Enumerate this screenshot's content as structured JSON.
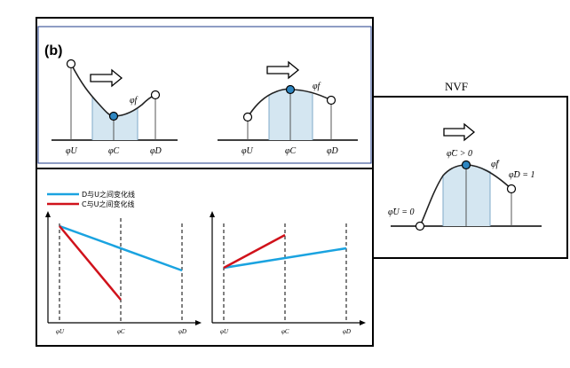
{
  "panel_label": "(b)",
  "nvf_title": "NVF",
  "axis_labels": {
    "phi_U": "φU",
    "phi_C": "φC",
    "phi_D": "φD",
    "phi_f": "φf"
  },
  "nvf_labels": {
    "phi_U_eq": "φ̃U = 0",
    "phi_C_gt": "φ̃C > 0",
    "phi_D_eq": "φ̃D = 1",
    "phi_f": "φ̃f"
  },
  "legend": [
    {
      "label": "D与U之间变化线",
      "color": "#1aa3e0"
    },
    {
      "label": "C与U之间变化线",
      "color": "#d0121b"
    }
  ],
  "bottom_ticks": [
    "φU",
    "φC",
    "φD"
  ],
  "colors": {
    "node_fill": "#2e86c1",
    "shade": "#d4e6f1",
    "blue_line": "#1aa3e0",
    "red_line": "#d0121b",
    "frame": "#000000",
    "inner_frame": "#1f3b8a"
  }
}
